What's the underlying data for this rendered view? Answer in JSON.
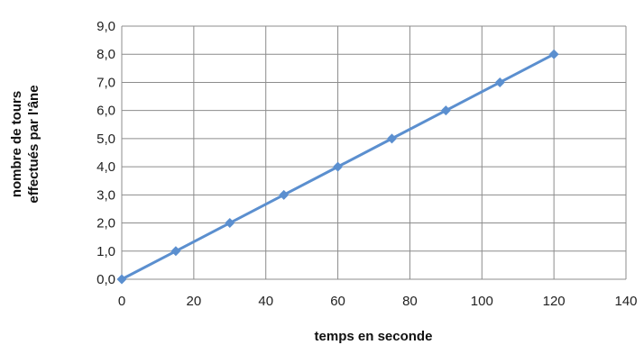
{
  "chart_data": {
    "type": "line",
    "xlabel": "temps en seconde",
    "ylabel_lines": [
      "nombre de tours",
      "effectués par l'âne"
    ],
    "xlim": [
      0,
      140
    ],
    "ylim": [
      0,
      9
    ],
    "x_ticks": [
      "0",
      "20",
      "40",
      "60",
      "80",
      "100",
      "120",
      "140"
    ],
    "y_ticks": [
      "0,0",
      "1,0",
      "2,0",
      "3,0",
      "4,0",
      "5,0",
      "6,0",
      "7,0",
      "8,0",
      "9,0"
    ],
    "grid": true,
    "legend": "none",
    "series": [
      {
        "color": "#5b8fcf",
        "marker": "diamond",
        "x": [
          0,
          15,
          30,
          45,
          60,
          75,
          90,
          105,
          120
        ],
        "values": [
          0,
          1,
          2,
          3,
          4,
          5,
          6,
          7,
          8
        ]
      }
    ]
  }
}
